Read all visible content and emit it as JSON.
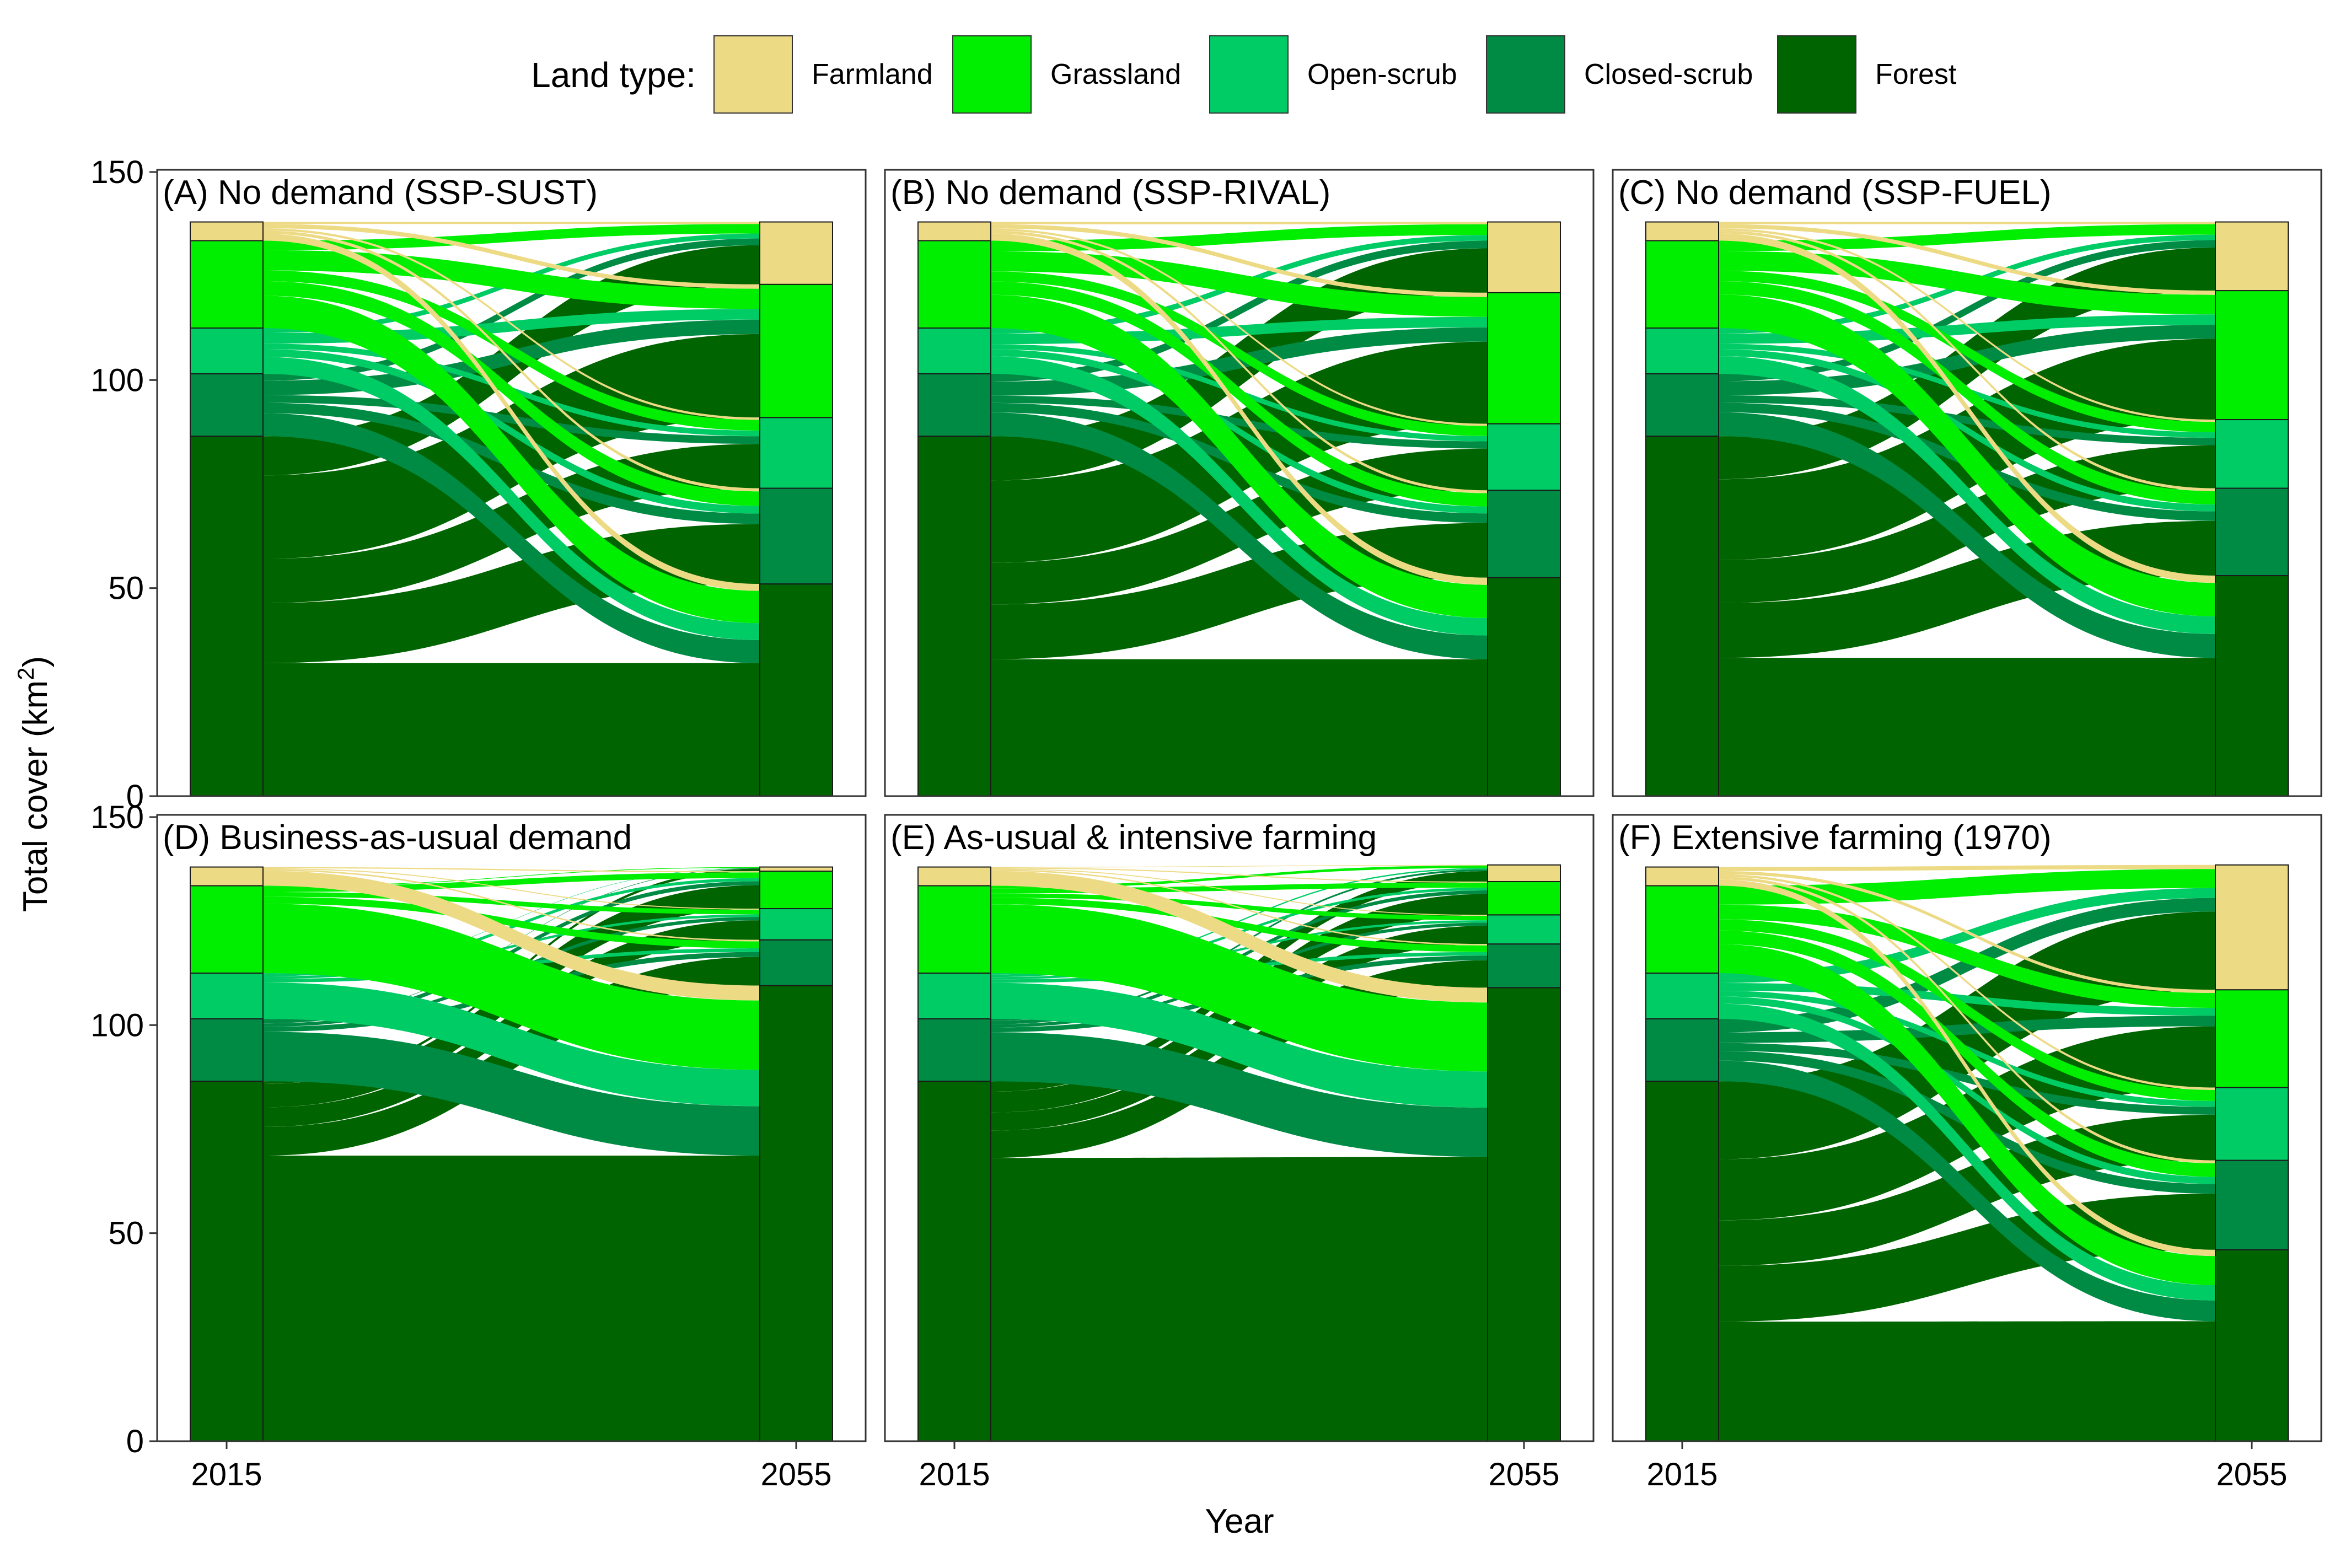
{
  "legend": {
    "title": "Land type:",
    "items": [
      {
        "key": "farmland",
        "label": "Farmland",
        "color": "#EDDA85"
      },
      {
        "key": "grassland",
        "label": "Grassland",
        "color": "#00EE00"
      },
      {
        "key": "openscrub",
        "label": "Open-scrub",
        "color": "#00CC66"
      },
      {
        "key": "closedscrub",
        "label": "Closed-scrub",
        "color": "#008B45"
      },
      {
        "key": "forest",
        "label": "Forest",
        "color": "#006400"
      }
    ]
  },
  "axes": {
    "ylabel": "Total cover (km",
    "ylabel_sup": "2",
    "ylabel_close": ")",
    "xlabel": "Year",
    "yticks": [
      0,
      50,
      100,
      150
    ],
    "ylim": [
      0,
      150
    ],
    "xticks": [
      "2015",
      "2055"
    ]
  },
  "chart_data": [
    {
      "type": "alluvial",
      "title": "(A) No demand (SSP-SUST)",
      "categories": [
        "2015",
        "2055"
      ],
      "series": [
        {
          "name": "Forest",
          "values": [
            86.5,
            51
          ]
        },
        {
          "name": "Closed-scrub",
          "values": [
            15,
            23
          ]
        },
        {
          "name": "Open-scrub",
          "values": [
            11,
            17
          ]
        },
        {
          "name": "Grassland",
          "values": [
            21,
            32
          ]
        },
        {
          "name": "Farmland",
          "values": [
            4.5,
            15
          ]
        }
      ]
    },
    {
      "type": "alluvial",
      "title": "(B) No demand (SSP-RIVAL)",
      "categories": [
        "2015",
        "2055"
      ],
      "series": [
        {
          "name": "Forest",
          "values": [
            86.5,
            52.5
          ]
        },
        {
          "name": "Closed-scrub",
          "values": [
            15,
            21
          ]
        },
        {
          "name": "Open-scrub",
          "values": [
            11,
            16
          ]
        },
        {
          "name": "Grassland",
          "values": [
            21,
            31.5
          ]
        },
        {
          "name": "Farmland",
          "values": [
            4.5,
            17
          ]
        }
      ]
    },
    {
      "type": "alluvial",
      "title": "(C) No demand (SSP-FUEL)",
      "categories": [
        "2015",
        "2055"
      ],
      "series": [
        {
          "name": "Forest",
          "values": [
            86.5,
            53
          ]
        },
        {
          "name": "Closed-scrub",
          "values": [
            15,
            21
          ]
        },
        {
          "name": "Open-scrub",
          "values": [
            11,
            16.5
          ]
        },
        {
          "name": "Grassland",
          "values": [
            21,
            31
          ]
        },
        {
          "name": "Farmland",
          "values": [
            4.5,
            16.5
          ]
        }
      ]
    },
    {
      "type": "alluvial",
      "title": "(D) Business-as-usual demand",
      "categories": [
        "2015",
        "2055"
      ],
      "series": [
        {
          "name": "Forest",
          "values": [
            86.5,
            109.5
          ]
        },
        {
          "name": "Closed-scrub",
          "values": [
            15,
            11
          ]
        },
        {
          "name": "Open-scrub",
          "values": [
            11,
            7.5
          ]
        },
        {
          "name": "Grassland",
          "values": [
            21,
            9
          ]
        },
        {
          "name": "Farmland",
          "values": [
            4.5,
            1
          ]
        }
      ]
    },
    {
      "type": "alluvial",
      "title": "(E) As-usual & intensive farming",
      "categories": [
        "2015",
        "2055"
      ],
      "series": [
        {
          "name": "Forest",
          "values": [
            86.5,
            109
          ]
        },
        {
          "name": "Closed-scrub",
          "values": [
            15,
            10.5
          ]
        },
        {
          "name": "Open-scrub",
          "values": [
            11,
            7
          ]
        },
        {
          "name": "Grassland",
          "values": [
            21,
            8
          ]
        },
        {
          "name": "Farmland",
          "values": [
            4.5,
            4
          ]
        }
      ]
    },
    {
      "type": "alluvial",
      "title": "(F) Extensive farming (1970)",
      "categories": [
        "2015",
        "2055"
      ],
      "series": [
        {
          "name": "Forest",
          "values": [
            86.5,
            46
          ]
        },
        {
          "name": "Closed-scrub",
          "values": [
            15,
            21.5
          ]
        },
        {
          "name": "Open-scrub",
          "values": [
            11,
            17.5
          ]
        },
        {
          "name": "Grassland",
          "values": [
            21,
            23.5
          ]
        },
        {
          "name": "Farmland",
          "values": [
            4.5,
            30
          ]
        }
      ]
    }
  ]
}
